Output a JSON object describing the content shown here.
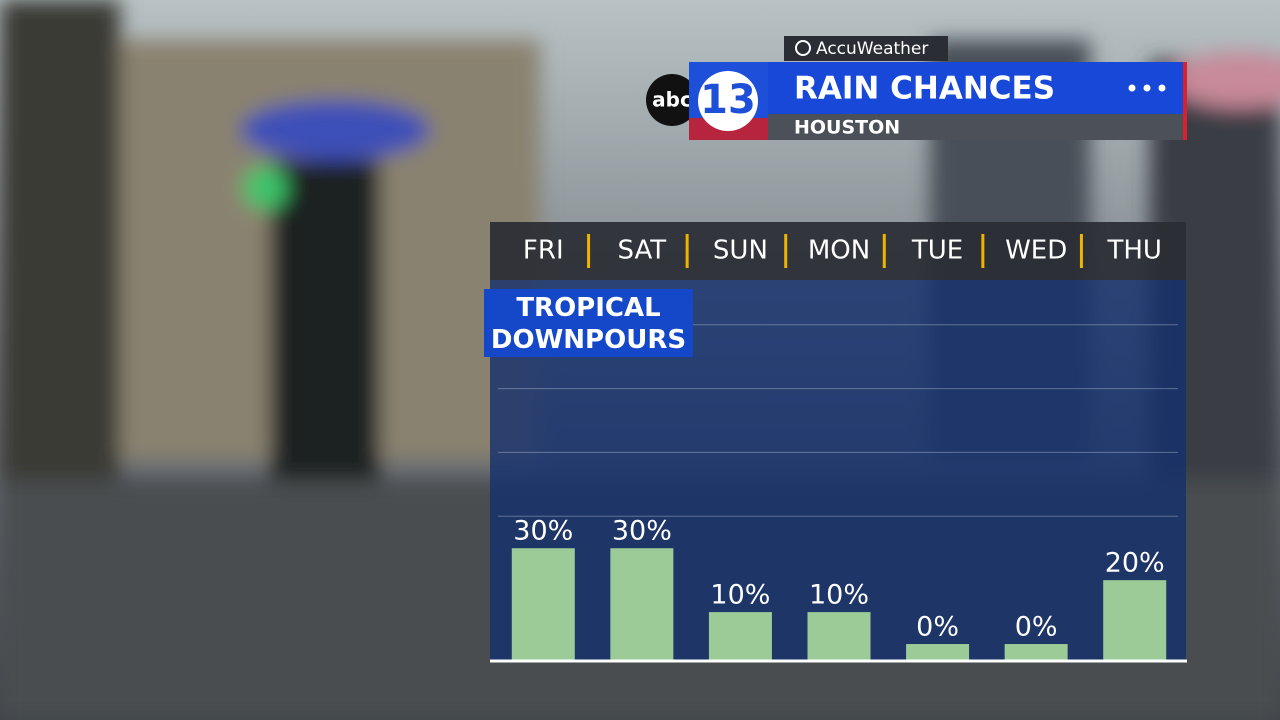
{
  "header": {
    "brand": "AccuWeather",
    "logo_text": "abc",
    "logo_number": "13",
    "title": "RAIN CHANCES",
    "location": "HOUSTON"
  },
  "chart_data": {
    "type": "bar",
    "annotation": "TROPICAL DOWNPOURS",
    "categories": [
      "FRI",
      "SAT",
      "SUN",
      "MON",
      "TUE",
      "WED",
      "THU"
    ],
    "values": [
      30,
      30,
      10,
      10,
      0,
      0,
      20
    ],
    "value_labels": [
      "30%",
      "30%",
      "10%",
      "10%",
      "0%",
      "0%",
      "20%"
    ],
    "color": "#9dcb97",
    "ylim": [
      -5,
      114
    ],
    "yticks": [
      40,
      60,
      80,
      100
    ],
    "grid": true
  }
}
